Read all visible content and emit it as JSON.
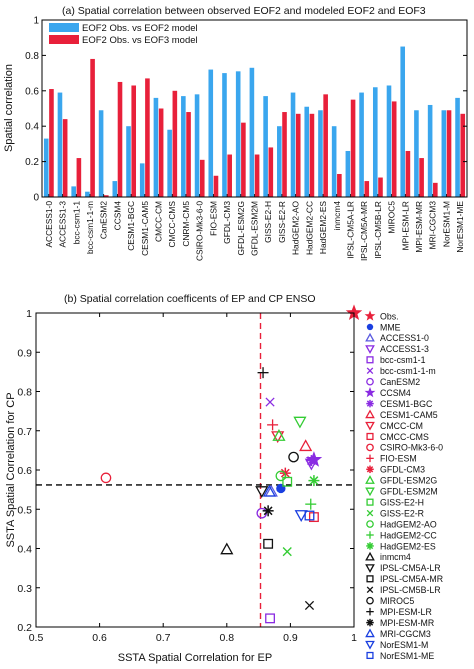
{
  "panel_a": {
    "title": "(a) Spatial correlation between observed EOF2 and modeled EOF2 and EOF3",
    "ylabel": "Spatial correlation",
    "legend": [
      "EOF2 Obs. vs EOF2 model",
      "EOF2 Obs. vs EOF3 model"
    ]
  },
  "panel_b": {
    "title": "(b) Spatial correlation coefficents of EP and CP ENSO",
    "xlabel": "SSTA Spatial Correlation for EP",
    "ylabel": "SSTA Spatial Correlation for CP"
  },
  "colors": {
    "eof2": "#3aa6ee",
    "eof3": "#e8203a",
    "refline": "#e8203a",
    "mme": "#1a3fe0"
  },
  "chart_data": [
    {
      "type": "bar",
      "title": "(a) Spatial correlation between observed EOF2 and modeled EOF2 and EOF3",
      "xlabel": "",
      "ylabel": "Spatial correlation",
      "ylim": [
        0,
        1
      ],
      "yticks": [
        0,
        0.2,
        0.4,
        0.6,
        0.8,
        1
      ],
      "grid": false,
      "legend_position": "top-left",
      "categories": [
        "ACCESS1-0",
        "ACCESS1-3",
        "bcc-csm1-1",
        "bcc-csm1-1-m",
        "CanESM2",
        "CCSM4",
        "CESM1-BGC",
        "CESM1-CAM5",
        "CMCC-CM",
        "CMCC-CMS",
        "CNRM-CM5",
        "CSIRO-Mk3-6-0",
        "FIO-ESM",
        "GFDL-CM3",
        "GFDL-ESM2G",
        "GFDL-ESM2M",
        "GISS-E2-H",
        "GISS-E2-R",
        "HadGEM2-AO",
        "HadGEM2-CC",
        "HadGEM2-ES",
        "inmcm4",
        "IPSL-CM5A-LR",
        "IPSL-CM5A-MR",
        "IPSL-CM5B-LR",
        "MIROC5",
        "MPI-ESM-LR",
        "MPI-ESM-MR",
        "MRI-CGCM3",
        "NorESM1-M",
        "NorESM1-ME"
      ],
      "series": [
        {
          "name": "EOF2 Obs. vs EOF2 model",
          "color": "#3aa6ee",
          "values": [
            0.33,
            0.59,
            0.06,
            0.03,
            0.49,
            0.09,
            0.4,
            0.19,
            0.56,
            0.38,
            0.57,
            0.58,
            0.72,
            0.7,
            0.71,
            0.73,
            0.57,
            0.4,
            0.59,
            0.51,
            0.49,
            0.4,
            0.26,
            0.59,
            0.62,
            0.63,
            0.85,
            0.49,
            0.52,
            0.49,
            0.56
          ]
        },
        {
          "name": "EOF2 Obs. vs EOF3 model",
          "color": "#e8203a",
          "values": [
            0.61,
            0.44,
            0.22,
            0.78,
            0.01,
            0.65,
            0.63,
            0.67,
            0.5,
            0.6,
            0.48,
            0.21,
            0.12,
            0.24,
            0.42,
            0.24,
            0.28,
            0.48,
            0.47,
            0.47,
            0.58,
            0.13,
            0.55,
            0.09,
            0.11,
            0.54,
            0.26,
            0.22,
            0.08,
            0.49,
            0.47
          ]
        }
      ]
    },
    {
      "type": "scatter",
      "title": "(b) Spatial correlation coefficents of EP and CP ENSO",
      "xlabel": "SSTA Spatial Correlation for EP",
      "ylabel": "SSTA Spatial Correlation for CP",
      "xlim": [
        0.5,
        1
      ],
      "ylim": [
        0.2,
        1
      ],
      "xticks": [
        0.5,
        0.6,
        0.7,
        0.8,
        0.9,
        1
      ],
      "yticks": [
        0.2,
        0.3,
        0.4,
        0.5,
        0.6,
        0.7,
        0.8,
        0.9,
        1
      ],
      "reference_lines": [
        {
          "orientation": "vertical",
          "value": 0.853,
          "color": "#e8203a",
          "style": "dashed"
        },
        {
          "orientation": "horizontal",
          "value": 0.562,
          "color": "#000000",
          "style": "dashed"
        }
      ],
      "legend_position": "right-outside",
      "series": [
        {
          "name": "Obs.",
          "marker": "star",
          "color": "#e8203a",
          "x": 1.0,
          "y": 1.0
        },
        {
          "name": "MME",
          "marker": "dot",
          "color": "#1a3fe0",
          "x": 0.885,
          "y": 0.553
        },
        {
          "name": "ACCESS1-0",
          "marker": "triangle-up",
          "color": "#5a5ae0",
          "x": 0.87,
          "y": 0.545
        },
        {
          "name": "ACCESS1-3",
          "marker": "triangle-down",
          "color": "#8a2be2",
          "x": 0.933,
          "y": 0.616
        },
        {
          "name": "bcc-csm1-1",
          "marker": "square",
          "color": "#8a2be2",
          "x": 0.868,
          "y": 0.222
        },
        {
          "name": "bcc-csm1-1-m",
          "marker": "x",
          "color": "#8a2be2",
          "x": 0.868,
          "y": 0.773
        },
        {
          "name": "CanESM2",
          "marker": "circle",
          "color": "#8a2be2",
          "x": 0.855,
          "y": 0.49
        },
        {
          "name": "CCSM4",
          "marker": "star",
          "color": "#8a2be2",
          "x": 0.937,
          "y": 0.626
        },
        {
          "name": "CESM1-BGC",
          "marker": "asterisk",
          "color": "#8a2be2",
          "x": 0.933,
          "y": 0.624
        },
        {
          "name": "CESM1-CAM5",
          "marker": "triangle-up",
          "color": "#e8203a",
          "x": 0.924,
          "y": 0.661
        },
        {
          "name": "CMCC-CM",
          "marker": "triangle-down",
          "color": "#e8203a",
          "x": 0.88,
          "y": 0.686
        },
        {
          "name": "CMCC-CMS",
          "marker": "square",
          "color": "#e8203a",
          "x": 0.937,
          "y": 0.48
        },
        {
          "name": "CSIRO-Mk3-6-0",
          "marker": "circle",
          "color": "#e8203a",
          "x": 0.61,
          "y": 0.58
        },
        {
          "name": "FIO-ESM",
          "marker": "plus",
          "color": "#e8203a",
          "x": 0.872,
          "y": 0.715
        },
        {
          "name": "GFDL-CM3",
          "marker": "asterisk",
          "color": "#e8203a",
          "x": 0.892,
          "y": 0.592
        },
        {
          "name": "GFDL-ESM2G",
          "marker": "triangle-up",
          "color": "#33cc33",
          "x": 0.882,
          "y": 0.687
        },
        {
          "name": "GFDL-ESM2M",
          "marker": "triangle-down",
          "color": "#33cc33",
          "x": 0.915,
          "y": 0.723
        },
        {
          "name": "GISS-E2-H",
          "marker": "square",
          "color": "#33cc33",
          "x": 0.895,
          "y": 0.57
        },
        {
          "name": "GISS-E2-R",
          "marker": "x",
          "color": "#33cc33",
          "x": 0.895,
          "y": 0.392
        },
        {
          "name": "HadGEM2-AO",
          "marker": "circle",
          "color": "#33cc33",
          "x": 0.885,
          "y": 0.585
        },
        {
          "name": "HadGEM2-CC",
          "marker": "plus",
          "color": "#33cc33",
          "x": 0.932,
          "y": 0.513
        },
        {
          "name": "HadGEM2-ES",
          "marker": "asterisk",
          "color": "#33cc33",
          "x": 0.937,
          "y": 0.573
        },
        {
          "name": "inmcm4",
          "marker": "triangle-up",
          "color": "#111111",
          "x": 0.8,
          "y": 0.398
        },
        {
          "name": "IPSL-CM5A-LR",
          "marker": "triangle-down",
          "color": "#111111",
          "x": 0.855,
          "y": 0.546
        },
        {
          "name": "IPSL-CM5A-MR",
          "marker": "square",
          "color": "#111111",
          "x": 0.865,
          "y": 0.412
        },
        {
          "name": "IPSL-CM5B-LR",
          "marker": "x",
          "color": "#111111",
          "x": 0.93,
          "y": 0.255
        },
        {
          "name": "MIROC5",
          "marker": "circle",
          "color": "#111111",
          "x": 0.905,
          "y": 0.633
        },
        {
          "name": "MPI-ESM-LR",
          "marker": "plus",
          "color": "#111111",
          "x": 0.857,
          "y": 0.848
        },
        {
          "name": "MPI-ESM-MR",
          "marker": "asterisk",
          "color": "#111111",
          "x": 0.865,
          "y": 0.496
        },
        {
          "name": "MRI-CGCM3",
          "marker": "triangle-up",
          "color": "#1a3fe0",
          "x": 0.867,
          "y": 0.545
        },
        {
          "name": "NorESM1-M",
          "marker": "triangle-down",
          "color": "#1a3fe0",
          "x": 0.917,
          "y": 0.485
        },
        {
          "name": "NorESM1-ME",
          "marker": "square",
          "color": "#1a3fe0",
          "x": 0.93,
          "y": 0.484
        }
      ]
    }
  ]
}
